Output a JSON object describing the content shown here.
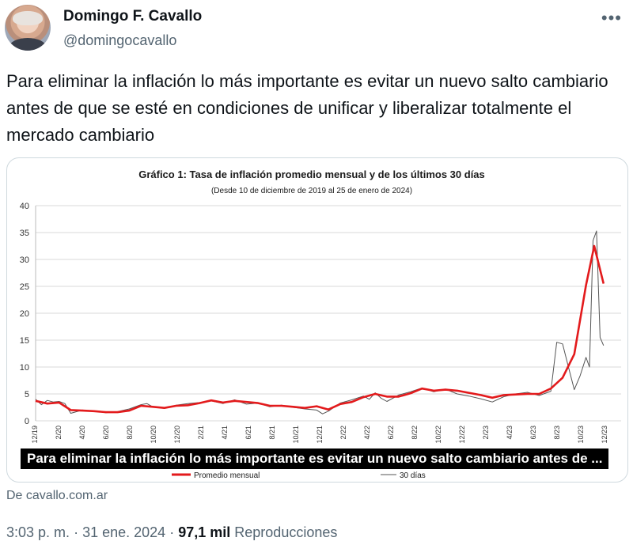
{
  "author": {
    "name": "Domingo F. Cavallo",
    "handle": "@domingocavallo"
  },
  "menu_icon": "more-horizontal-icon",
  "tweet": {
    "text": "Para eliminar la inflación lo más importante es evitar un nuevo salto cambiario antes de que se esté en condiciones de unificar y liberalizar totalmente el mercado cambiario"
  },
  "media": {
    "caption": "Para eliminar la inflación lo más importante es evitar un nuevo salto cambiario antes de ...",
    "source": "De cavallo.com.ar"
  },
  "meta": {
    "time": "3:03 p. m.",
    "sep1": "·",
    "date": "31 ene. 2024",
    "sep2": "·",
    "views_count": "97,1 mil",
    "views_label": "Reproducciones"
  },
  "colors": {
    "series_monthly": "#e31a1c",
    "series_30d": "#555555",
    "grid": "#d9d9d9"
  },
  "chart_data": {
    "type": "line",
    "title": "Gráfico 1: Tasa de inflación promedio mensual y de los últimos 30 días",
    "subtitle": "(Desde 10 de diciembre de 2019 al 25 de enero de 2024)",
    "ylim": [
      0,
      40
    ],
    "yticks": [
      0,
      5,
      10,
      15,
      20,
      25,
      30,
      35,
      40
    ],
    "xticks": [
      "12/19",
      "2/20",
      "4/20",
      "6/20",
      "8/20",
      "10/20",
      "12/20",
      "2/21",
      "4/21",
      "6/21",
      "8/21",
      "10/21",
      "12/21",
      "2/22",
      "4/22",
      "6/22",
      "8/22",
      "10/22",
      "12/22",
      "2/23",
      "4/23",
      "6/23",
      "8/23",
      "10/23",
      "12/23"
    ],
    "legend": [
      "Promedio mensual",
      "30 días"
    ],
    "series": [
      {
        "name": "Promedio mensual",
        "x": [
          0,
          1,
          2,
          3,
          4,
          5,
          6,
          7,
          8,
          9,
          10,
          11,
          12,
          13,
          14,
          15,
          16,
          17,
          18,
          19,
          20,
          21,
          22,
          23,
          24,
          25,
          26,
          27,
          28,
          29,
          30,
          31,
          32,
          33,
          34,
          35,
          36,
          37,
          38,
          39,
          40,
          41,
          42,
          43,
          44,
          45,
          46,
          47,
          47.7,
          48.5
        ],
        "values": [
          3.7,
          3.2,
          3.4,
          2.0,
          1.9,
          1.8,
          1.6,
          1.6,
          1.9,
          2.8,
          2.6,
          2.4,
          2.8,
          2.9,
          3.3,
          3.8,
          3.4,
          3.7,
          3.5,
          3.3,
          2.8,
          2.8,
          2.6,
          2.4,
          2.7,
          2.1,
          3.1,
          3.5,
          4.4,
          5.0,
          4.5,
          4.5,
          5.1,
          6.0,
          5.6,
          5.8,
          5.6,
          5.2,
          4.8,
          4.3,
          4.8,
          4.9,
          5.0,
          5.0,
          6.0,
          8.0,
          12.4,
          25.2,
          32.5,
          25.5
        ]
      },
      {
        "name": "30 días",
        "x": [
          0,
          0.5,
          1,
          1.5,
          2,
          2.5,
          3,
          4,
          5,
          6,
          7,
          8,
          9,
          9.5,
          10,
          11,
          12,
          13,
          14,
          15,
          16,
          17,
          18,
          19,
          20,
          21,
          22,
          23,
          24,
          24.5,
          25,
          26,
          27,
          28,
          28.5,
          29,
          29.5,
          30,
          31,
          32,
          33,
          34,
          35,
          36,
          37,
          38,
          39,
          40,
          41,
          42,
          43,
          44,
          44.5,
          45,
          45.5,
          46,
          46.5,
          47,
          47.3,
          47.6,
          47.9,
          48.2,
          48.5
        ],
        "values": [
          4.0,
          3.0,
          3.8,
          3.5,
          3.6,
          3.2,
          1.4,
          2.0,
          1.8,
          1.5,
          1.7,
          2.2,
          3.0,
          3.2,
          2.6,
          2.3,
          2.9,
          3.2,
          3.4,
          3.7,
          3.2,
          3.9,
          3.1,
          3.3,
          2.6,
          2.9,
          2.5,
          2.2,
          2.0,
          1.3,
          1.8,
          3.3,
          3.9,
          4.6,
          4.0,
          5.2,
          4.2,
          3.6,
          4.8,
          5.4,
          6.1,
          5.4,
          5.9,
          5.0,
          4.6,
          4.1,
          3.5,
          4.5,
          5.0,
          5.3,
          4.7,
          5.5,
          14.6,
          14.3,
          10.0,
          5.8,
          8.4,
          11.8,
          10.0,
          33.5,
          35.3,
          15.5,
          14.0
        ]
      }
    ]
  }
}
